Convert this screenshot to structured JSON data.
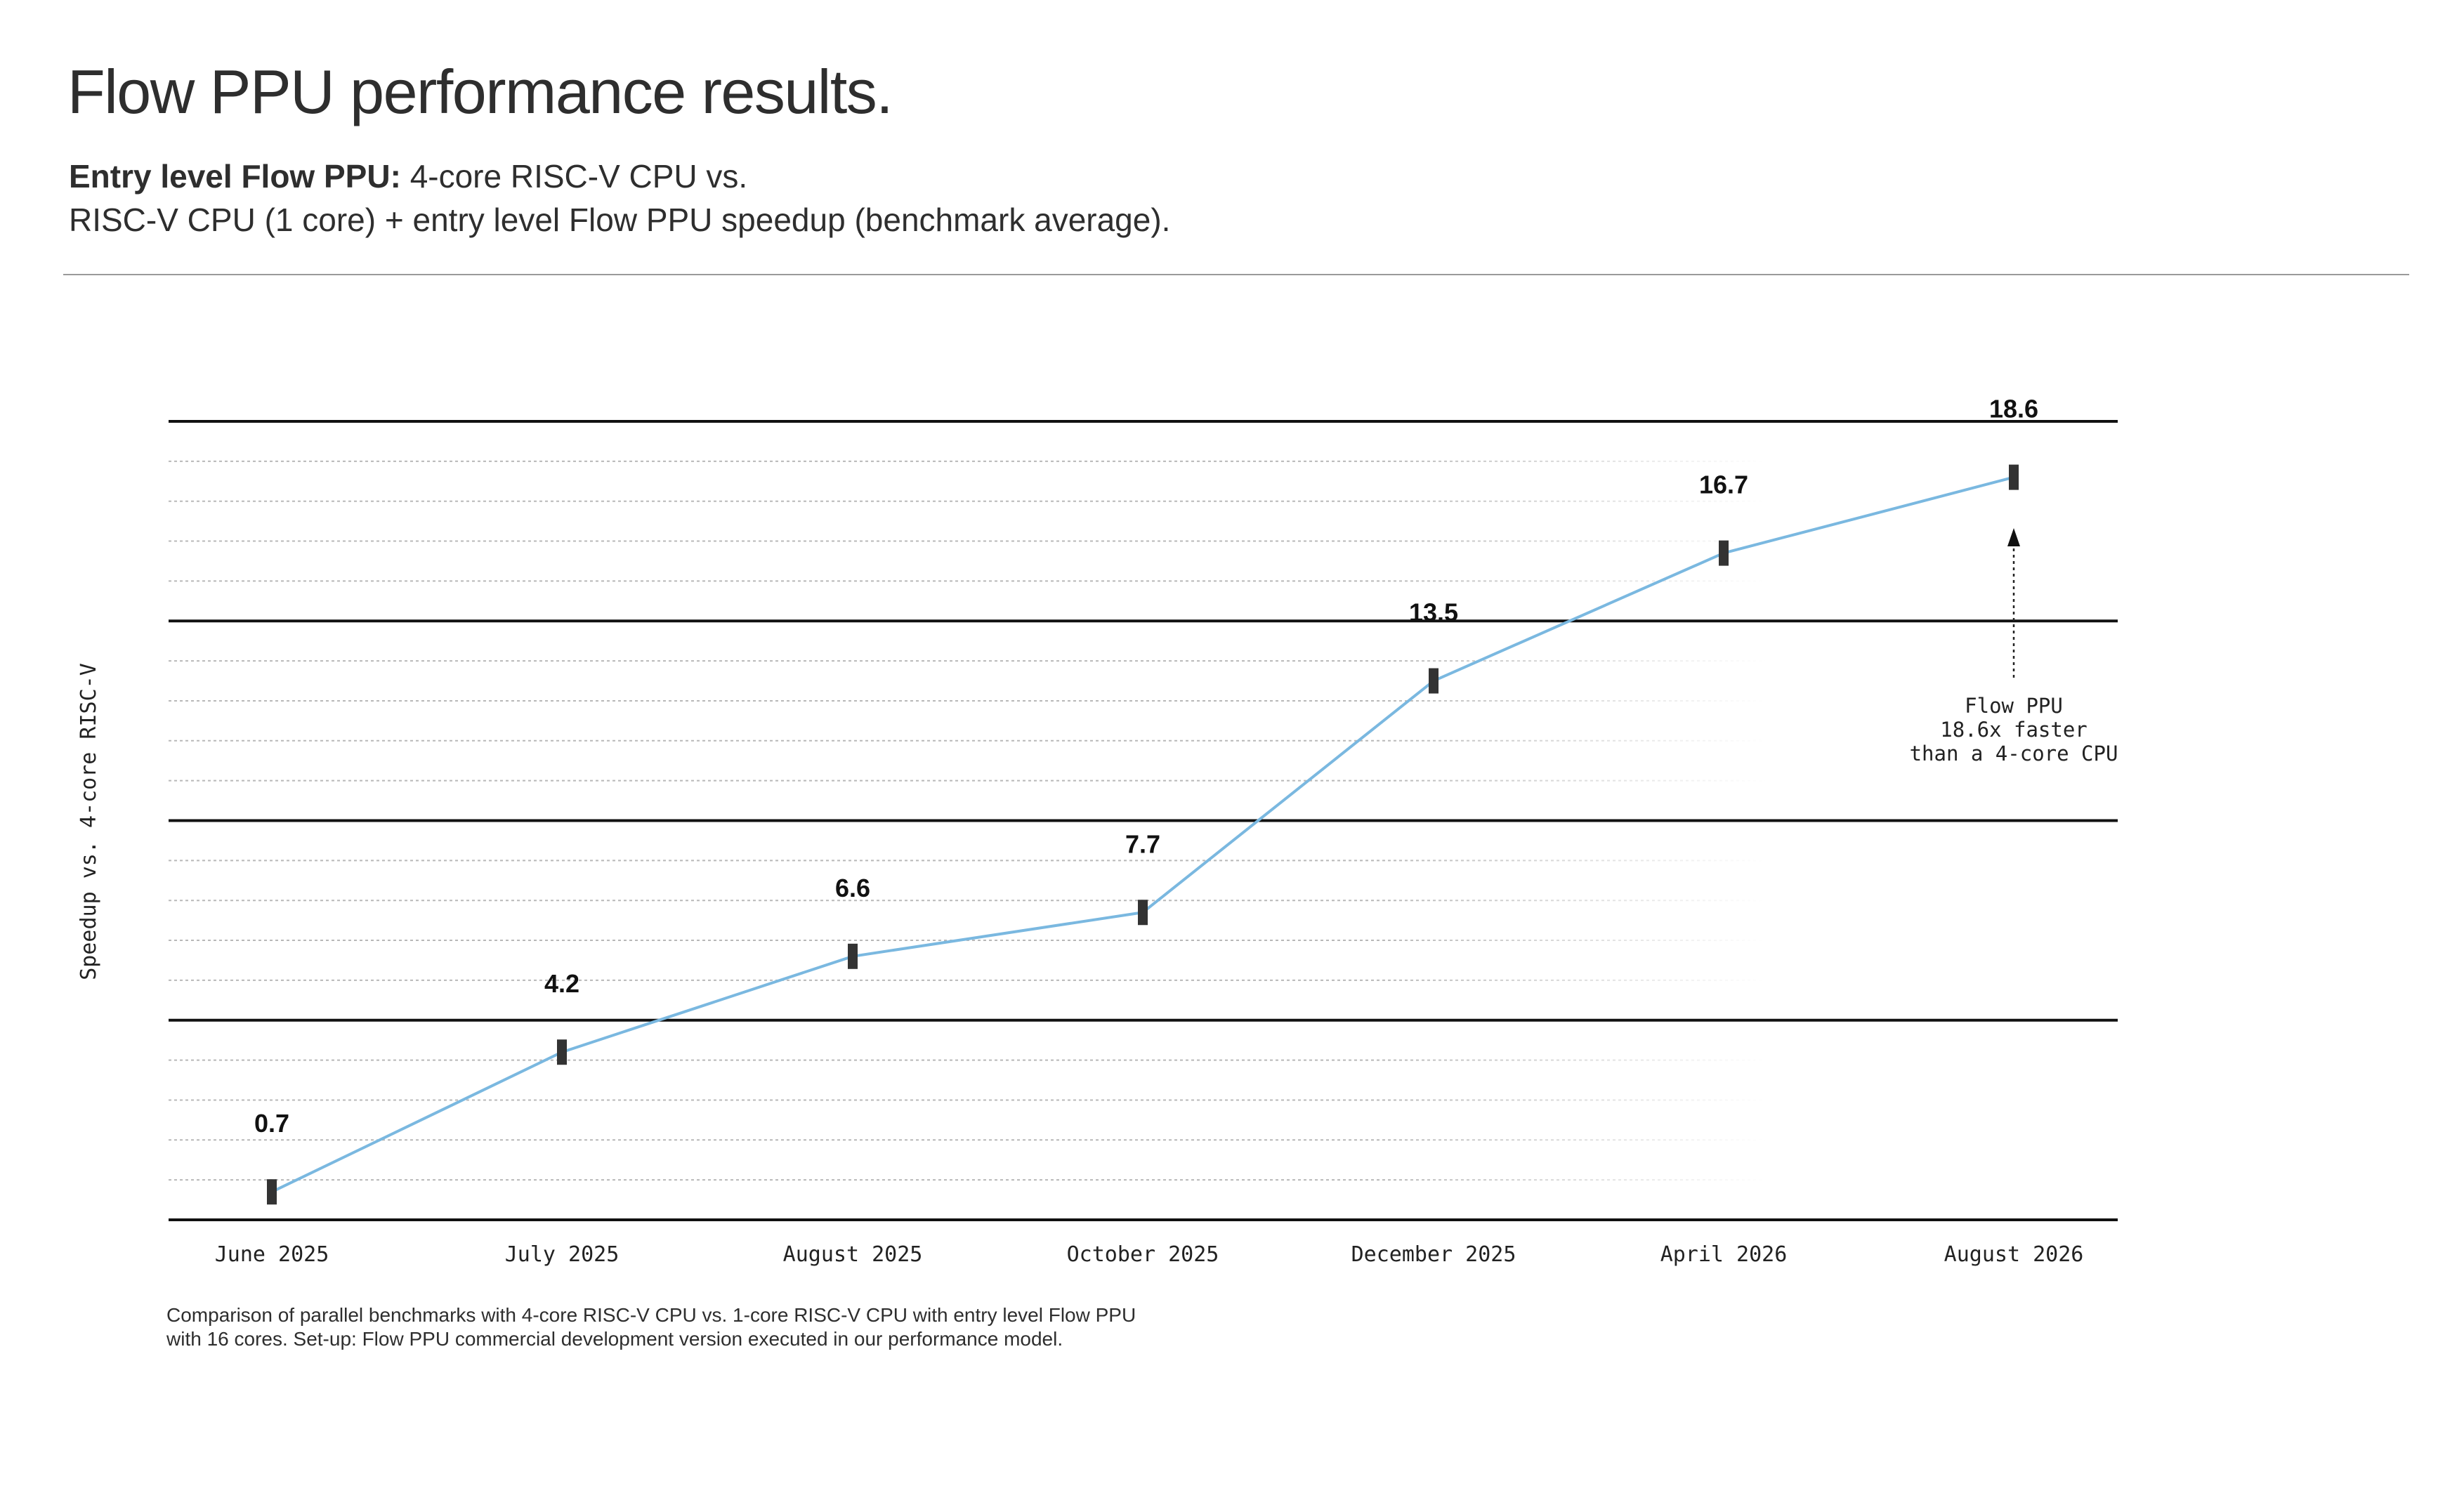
{
  "header": {
    "title": "Flow PPU performance results.",
    "subtitle_bold": "Entry level Flow PPU:",
    "subtitle_line1": "4-core RISC-V CPU vs.",
    "subtitle_line2": "RISC-V CPU (1 core) + entry level Flow PPU speedup (benchmark average)."
  },
  "chart_data": {
    "type": "line",
    "title": "",
    "xlabel": "",
    "ylabel": "Speedup vs. 4-core RISC-V",
    "categories": [
      "June 2025",
      "July 2025",
      "August 2025",
      "October 2025",
      "December 2025",
      "April 2026",
      "August 2026"
    ],
    "series": [
      {
        "values": [
          0.7,
          4.2,
          6.6,
          7.7,
          13.5,
          16.7,
          18.6
        ],
        "color": "#7ab8e0"
      }
    ],
    "data_labels": [
      "0.7",
      "4.2",
      "6.6",
      "7.7",
      "13.5",
      "16.7",
      "18.6"
    ],
    "ylim": [
      0,
      20
    ],
    "major_grid": [
      5,
      10,
      15
    ],
    "minor_grid_step": 1,
    "grid": true,
    "legend": "none",
    "annotation": {
      "lines": [
        "Flow PPU",
        "18.6x faster",
        "than a 4-core CPU"
      ],
      "target_index": 6
    },
    "colors": {
      "line": "#7ab8e0",
      "marker": "#333333",
      "major_grid": "#111111",
      "minor_grid": "#b8b8b8"
    }
  },
  "footnote": "Comparison of parallel benchmarks with 4-core RISC-V CPU vs. 1-core RISC-V CPU with entry level Flow PPU with 16 cores. Set-up: Flow PPU commercial development version executed in our performance model."
}
